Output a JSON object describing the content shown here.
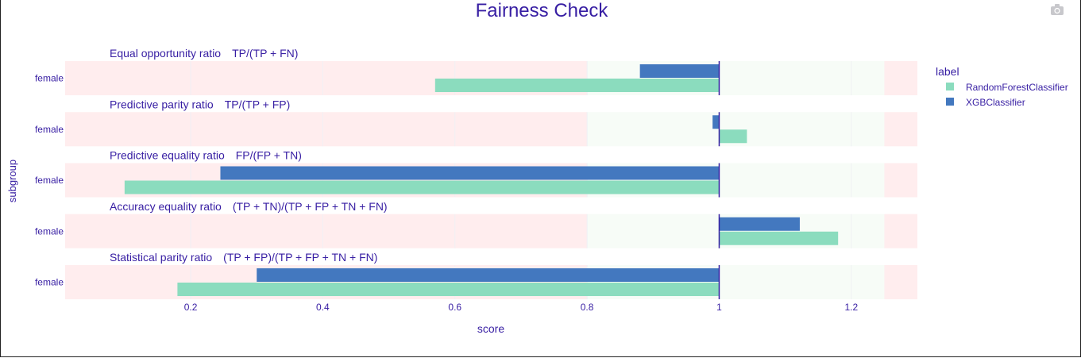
{
  "title": "Fairness Check",
  "chart_data": {
    "type": "bar",
    "orientation": "horizontal",
    "title": "Fairness Check",
    "xlabel": "score",
    "ylabel": "subgroup",
    "xlim": [
      0.01,
      1.3
    ],
    "x_ticks": [
      0.2,
      0.4,
      0.6,
      0.8,
      1,
      1.2
    ],
    "x_tick_labels": [
      "0.2",
      "0.4",
      "0.6",
      "0.8",
      "1",
      "1.2"
    ],
    "fair_range": [
      0.8,
      1.25
    ],
    "reference_value": 1,
    "legend_title": "label",
    "legend_position": "top-right",
    "series": [
      {
        "name": "RandomForestClassifier",
        "color": "#8bdcbe"
      },
      {
        "name": "XGBClassifier",
        "color": "#4378bf"
      }
    ],
    "panels": [
      {
        "metric": "Equal opportunity ratio",
        "formula": "TP/(TP + FN)",
        "subgroup": "female",
        "values": {
          "RandomForestClassifier": 0.57,
          "XGBClassifier": 0.88
        }
      },
      {
        "metric": "Predictive parity ratio",
        "formula": "TP/(TP + FP)",
        "subgroup": "female",
        "values": {
          "RandomForestClassifier": 1.042,
          "XGBClassifier": 0.99
        }
      },
      {
        "metric": "Predictive equality ratio",
        "formula": "FP/(FP + TN)",
        "subgroup": "female",
        "values": {
          "RandomForestClassifier": 0.1,
          "XGBClassifier": 0.245
        }
      },
      {
        "metric": "Accuracy equality ratio",
        "formula": "(TP + TN)/(TP + FP + TN + FN)",
        "subgroup": "female",
        "values": {
          "RandomForestClassifier": 1.18,
          "XGBClassifier": 1.122
        }
      },
      {
        "metric": "Statistical parity ratio",
        "formula": "(TP + FP)/(TP + FP + TN + FN)",
        "subgroup": "female",
        "values": {
          "RandomForestClassifier": 0.18,
          "XGBClassifier": 0.3
        }
      }
    ]
  },
  "colors": {
    "text": "#371ea3",
    "unfair_zone": "#ffedee",
    "fair_zone": "#f7fcf7",
    "grid": "#f0f0f4",
    "axis": "#371ea3"
  },
  "toolbar": {
    "camera_icon": "camera-icon"
  }
}
